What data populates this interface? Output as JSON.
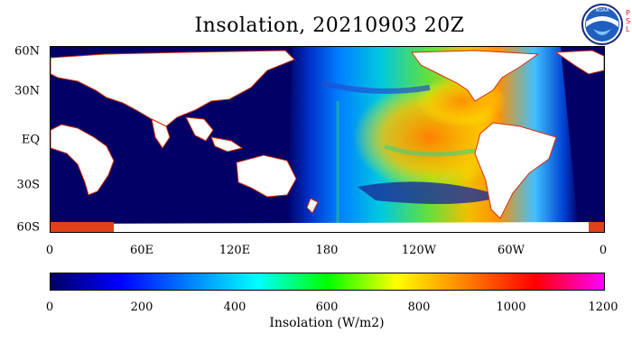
{
  "title": "Insolation, 20210903 20Z",
  "logo": {
    "icon": "noaa-logo-icon",
    "side_text": "PSL"
  },
  "map": {
    "lat_labels": [
      "60N",
      "30N",
      "EQ",
      "30S",
      "60S"
    ],
    "lon_labels": [
      "0",
      "60E",
      "120E",
      "180",
      "120W",
      "60W",
      "0"
    ],
    "land_color": "#ffffff",
    "ocean_night_color": "#000066",
    "ice_color": "#e0401a"
  },
  "colorbar": {
    "ticks": [
      "0",
      "200",
      "400",
      "600",
      "800",
      "1000",
      "1200"
    ],
    "label": "Insolation (W/m2)",
    "colors": [
      "#000066",
      "#0000ff",
      "#0080ff",
      "#00ffff",
      "#00ff00",
      "#ffff00",
      "#ff8000",
      "#ff0000",
      "#ff00ff"
    ]
  }
}
